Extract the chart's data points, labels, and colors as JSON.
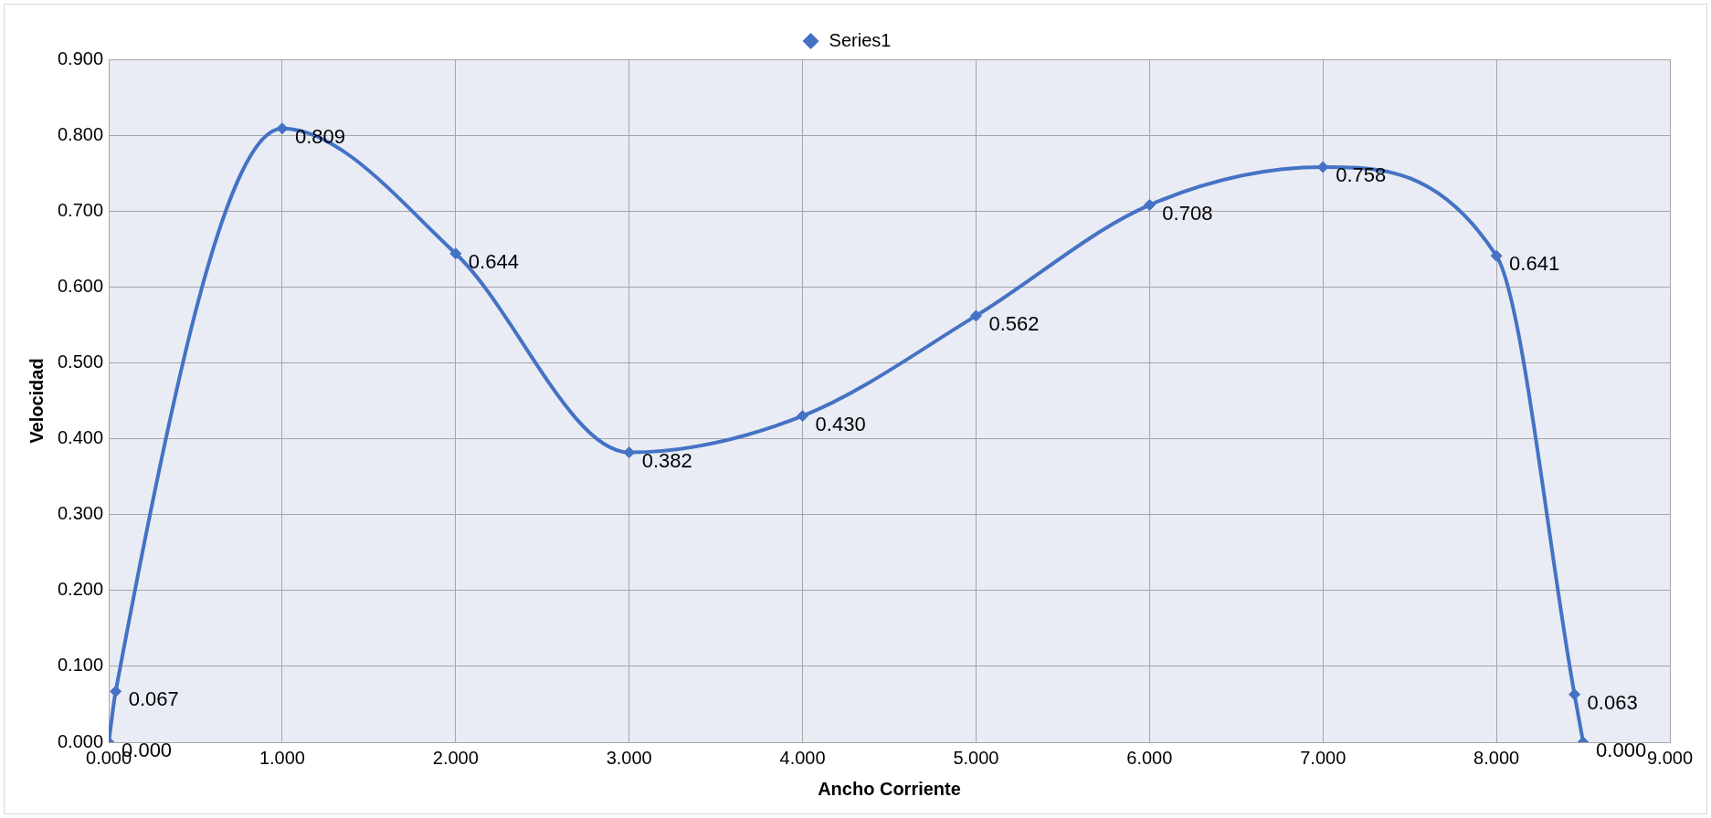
{
  "chart_data": {
    "type": "line",
    "xlabel": "Ancho Corriente",
    "ylabel": "Velocidad",
    "x": [
      0,
      0.04,
      1,
      2,
      3,
      4,
      5,
      6,
      7,
      8,
      8.45,
      8.5
    ],
    "series": [
      {
        "name": "Series1",
        "color": "#4472c4",
        "values": [
          0,
          0.067,
          0.809,
          0.644,
          0.382,
          0.43,
          0.562,
          0.708,
          0.758,
          0.641,
          0.063,
          0
        ],
        "value_labels": [
          "0.000",
          "0.067",
          "0.809",
          "0.644",
          "0.382",
          "0.430",
          "0.562",
          "0.708",
          "0.758",
          "0.641",
          "0.063",
          "0.000"
        ]
      }
    ],
    "xlim": [
      0,
      9
    ],
    "xticks": [
      {
        "value": 0,
        "label": "0.000"
      },
      {
        "value": 1,
        "label": "1.000"
      },
      {
        "value": 2,
        "label": "2.000"
      },
      {
        "value": 3,
        "label": "3.000"
      },
      {
        "value": 4,
        "label": "4.000"
      },
      {
        "value": 5,
        "label": "5.000"
      },
      {
        "value": 6,
        "label": "6.000"
      },
      {
        "value": 7,
        "label": "7.000"
      },
      {
        "value": 8,
        "label": "8.000"
      },
      {
        "value": 9,
        "label": "9.000"
      }
    ],
    "ylim": [
      0,
      0.9
    ],
    "yticks": [
      {
        "value": 0,
        "label": "0.000"
      },
      {
        "value": 0.1,
        "label": "0.100"
      },
      {
        "value": 0.2,
        "label": "0.200"
      },
      {
        "value": 0.3,
        "label": "0.300"
      },
      {
        "value": 0.4,
        "label": "0.400"
      },
      {
        "value": 0.5,
        "label": "0.500"
      },
      {
        "value": 0.6,
        "label": "0.600"
      },
      {
        "value": 0.7,
        "label": "0.700"
      },
      {
        "value": 0.8,
        "label": "0.800"
      },
      {
        "value": 0.9,
        "label": "0.900"
      }
    ],
    "grid": true,
    "legend": "top",
    "marker": "diamond",
    "line_style": "solid"
  }
}
